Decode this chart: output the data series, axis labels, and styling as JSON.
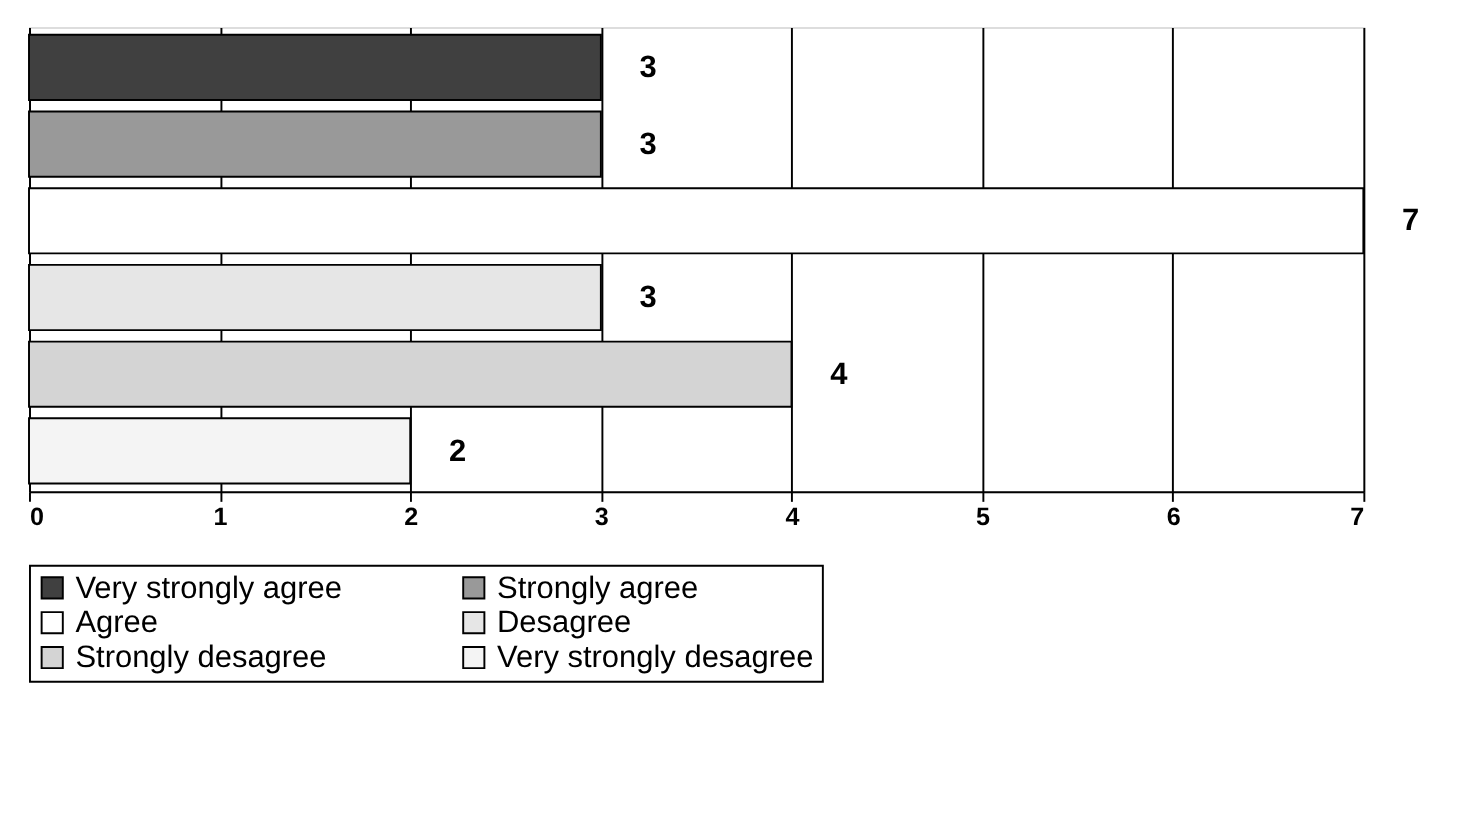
{
  "chart_data": {
    "type": "bar",
    "orientation": "horizontal",
    "categories": [
      null
    ],
    "series": [
      {
        "name": "Very strongly agree",
        "color": "#404040",
        "values": [
          3
        ]
      },
      {
        "name": "Strongly agree",
        "color": "#999999",
        "values": [
          3
        ]
      },
      {
        "name": "Agree",
        "color": "#ffffff",
        "values": [
          7
        ]
      },
      {
        "name": "Desagree",
        "color": "#e6e6e6",
        "values": [
          3
        ]
      },
      {
        "name": "Strongly desagree",
        "color": "#d4d4d4",
        "values": [
          4
        ]
      },
      {
        "name": "Very strongly desagree",
        "color": "#f4f4f4",
        "values": [
          2
        ]
      }
    ],
    "xlim": [
      0,
      7
    ],
    "xticks": [
      0,
      1,
      2,
      3,
      4,
      5,
      6,
      7
    ],
    "grid": "x",
    "legend": "bottom",
    "data_labels": true,
    "tick_labels": "x"
  }
}
